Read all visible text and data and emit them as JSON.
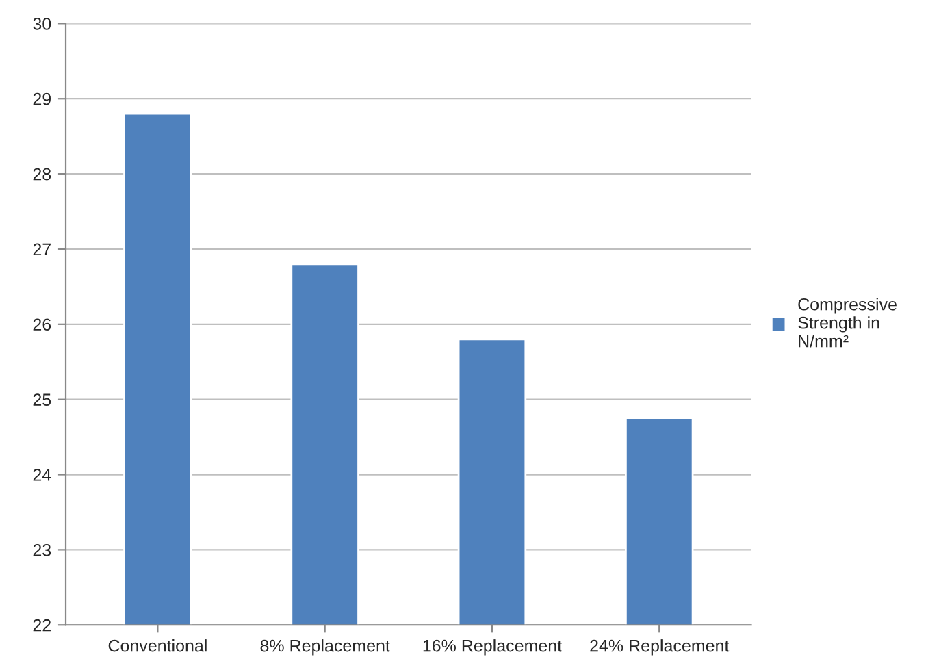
{
  "chart_data": {
    "type": "bar",
    "categories": [
      "Conventional",
      "8% Replacement",
      "16% Replacement",
      "24% Replacement"
    ],
    "series": [
      {
        "name": "Compressive Strength in N/mm²",
        "color": "#4f81bd",
        "values": [
          28.8,
          26.8,
          25.8,
          24.75
        ]
      }
    ],
    "ylim": [
      22,
      30
    ],
    "yticks": [
      22,
      23,
      24,
      25,
      26,
      27,
      28,
      29,
      30
    ],
    "grid": "y",
    "legend": "right"
  }
}
